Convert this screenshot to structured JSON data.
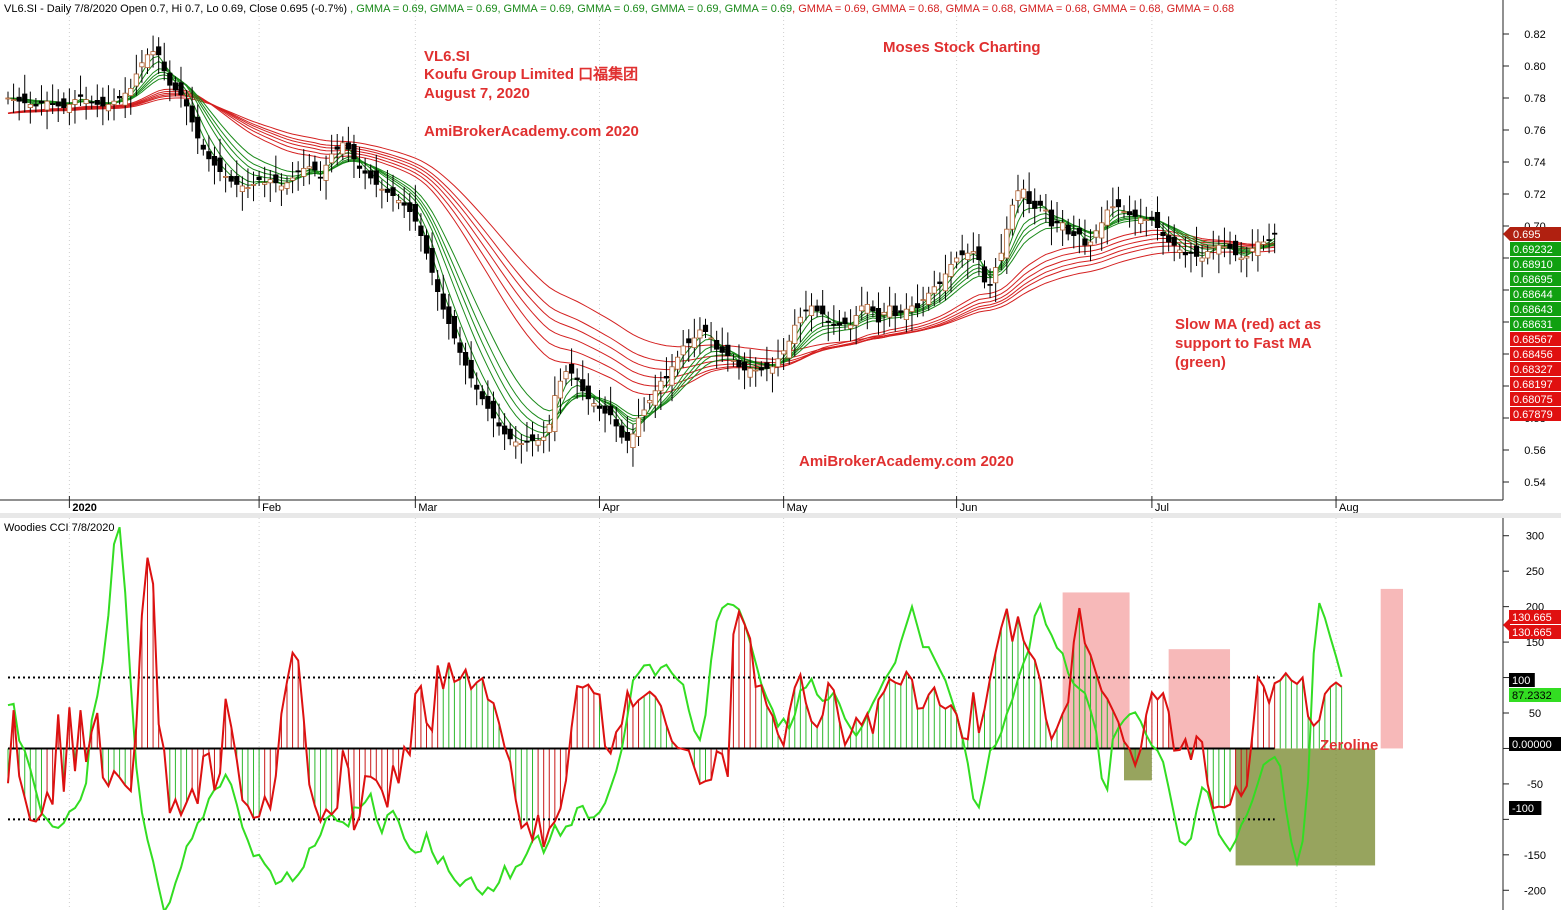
{
  "upper_pane": {
    "header_prefix": "VL6.SI - Daily 7/8/2020 Open 0.7, Hi 0.7, Lo 0.69, Close 0.695 (-0.7%)",
    "gmma_readouts": [
      {
        "text": "GMMA = 0.69",
        "color": "#1a8a1a"
      },
      {
        "text": "GMMA = 0.69",
        "color": "#1a8a1a"
      },
      {
        "text": "GMMA = 0.69",
        "color": "#1a8a1a"
      },
      {
        "text": "GMMA = 0.69",
        "color": "#1a8a1a"
      },
      {
        "text": "GMMA = 0.69",
        "color": "#1a8a1a"
      },
      {
        "text": "GMMA = 0.69",
        "color": "#1a8a1a"
      },
      {
        "text": "GMMA = 0.69",
        "color": "#d42020"
      },
      {
        "text": "GMMA = 0.68",
        "color": "#d42020"
      },
      {
        "text": "GMMA = 0.68",
        "color": "#d42020"
      },
      {
        "text": "GMMA = 0.68",
        "color": "#d42020"
      },
      {
        "text": "GMMA = 0.68",
        "color": "#d42020"
      },
      {
        "text": "GMMA = 0.68",
        "color": "#d42020"
      }
    ],
    "annotations": {
      "ticker": "VL6.SI",
      "company": "Koufu Group Limited 口福集团",
      "date": "August 7, 2020",
      "site_top": "AmiBrokerAcademy.com  2020",
      "brand": "Moses Stock Charting",
      "site_bottom": "AmiBrokerAcademy.com  2020",
      "note_line1": "Slow MA (red) act as",
      "note_line2": "support to Fast MA",
      "note_line3": "(green)"
    }
  },
  "lower_pane": {
    "title": "Woodies CCI  7/8/2020",
    "zeroline_label": "Zeroline"
  },
  "colors": {
    "up_candle": "#ffffff",
    "down_candle": "#000000",
    "fast_ma": "#1a8a1a",
    "slow_ma": "#d42020",
    "cci_line": "#33dd22",
    "turbo_line": "#dd1111",
    "annotation_red": "#e03030",
    "highlight_pink": "#f08080",
    "highlight_olive": "#6b7d1a"
  },
  "chart_data": [
    {
      "type": "candlestick",
      "title": "VL6.SI - Daily 7/8/2020",
      "ylim": [
        0.53,
        0.83
      ],
      "yticks": [
        0.54,
        0.56,
        0.58,
        0.6,
        0.62,
        0.64,
        0.66,
        0.68,
        0.7,
        0.72,
        0.74,
        0.76,
        0.78,
        0.8,
        0.82
      ],
      "ytick_labels": [
        "0.54",
        "0.56",
        "0.58",
        "",
        "",
        "",
        "",
        "",
        "0.70",
        "0.72",
        "0.74",
        "0.76",
        "0.78",
        "0.80",
        "0.82"
      ],
      "x_labels": [
        "2020",
        "Feb",
        "Mar",
        "Apr",
        "May",
        "Jun",
        "Jul",
        "Aug"
      ],
      "x_label_bar_index": [
        11,
        45,
        73,
        106,
        139,
        170,
        205,
        238
      ],
      "close_series": [
        0.78,
        0.779,
        0.778,
        0.777,
        0.776,
        0.775,
        0.777,
        0.778,
        0.776,
        0.775,
        0.774,
        0.776,
        0.779,
        0.781,
        0.779,
        0.777,
        0.776,
        0.775,
        0.776,
        0.778,
        0.78,
        0.783,
        0.786,
        0.795,
        0.802,
        0.807,
        0.809,
        0.807,
        0.797,
        0.788,
        0.785,
        0.782,
        0.775,
        0.765,
        0.755,
        0.748,
        0.742,
        0.738,
        0.734,
        0.731,
        0.728,
        0.726,
        0.725,
        0.724,
        0.726,
        0.729,
        0.727,
        0.729,
        0.727,
        0.725,
        0.727,
        0.73,
        0.734,
        0.736,
        0.737,
        0.735,
        0.73,
        0.738,
        0.745,
        0.748,
        0.752,
        0.748,
        0.742,
        0.736,
        0.733,
        0.73,
        0.726,
        0.723,
        0.721,
        0.719,
        0.716,
        0.713,
        0.709,
        0.703,
        0.694,
        0.683,
        0.671,
        0.659,
        0.648,
        0.639,
        0.63,
        0.621,
        0.613,
        0.605,
        0.598,
        0.592,
        0.586,
        0.58,
        0.575,
        0.57,
        0.567,
        0.565,
        0.564,
        0.565,
        0.566,
        0.566,
        0.568,
        0.576,
        0.594,
        0.603,
        0.609,
        0.608,
        0.604,
        0.597,
        0.592,
        0.589,
        0.586,
        0.583,
        0.582,
        0.575,
        0.568,
        0.566,
        0.57,
        0.58,
        0.585,
        0.591,
        0.597,
        0.603,
        0.605,
        0.612,
        0.618,
        0.625,
        0.627,
        0.63,
        0.635,
        0.634,
        0.63,
        0.623,
        0.621,
        0.619,
        0.616,
        0.612,
        0.61,
        0.611,
        0.61,
        0.61,
        0.611,
        0.612,
        0.617,
        0.622,
        0.628,
        0.638,
        0.643,
        0.647,
        0.65,
        0.647,
        0.645,
        0.64,
        0.638,
        0.638,
        0.639,
        0.638,
        0.644,
        0.65,
        0.651,
        0.647,
        0.64,
        0.646,
        0.65,
        0.644,
        0.646,
        0.648,
        0.65,
        0.649,
        0.654,
        0.658,
        0.662,
        0.664,
        0.67,
        0.676,
        0.68,
        0.682,
        0.683,
        0.684,
        0.679,
        0.665,
        0.663,
        0.674,
        0.683,
        0.698,
        0.713,
        0.722,
        0.723,
        0.714,
        0.711,
        0.713,
        0.71,
        0.7,
        0.702,
        0.702,
        0.695,
        0.694,
        0.695,
        0.688,
        0.69,
        0.697,
        0.702,
        0.71,
        0.712,
        0.712,
        0.709,
        0.707,
        0.706,
        0.705,
        0.704,
        0.704,
        0.699,
        0.694,
        0.69,
        0.688,
        0.685,
        0.682,
        0.683,
        0.681,
        0.68,
        0.684,
        0.687,
        0.688,
        0.687,
        0.686,
        0.682,
        0.68,
        0.681,
        0.686,
        0.69,
        0.69,
        0.691,
        0.695
      ]
    },
    {
      "type": "line",
      "title": "Woodies CCI  7/8/2020",
      "ylim": [
        -225,
        325
      ],
      "yticks": [
        -200,
        -150,
        -100,
        -50,
        0,
        50,
        100,
        150,
        200,
        250,
        300
      ],
      "ytick_labels": [
        "-200",
        "-150",
        "-100",
        "-50",
        "0.00000",
        "50",
        "100",
        "150",
        "200",
        "250",
        "300"
      ],
      "reference_lines": [
        100,
        0,
        -100
      ],
      "readouts": [
        "130.665",
        "130.665",
        "100",
        "87.2332",
        "0.00000",
        "-100"
      ],
      "series": [
        {
          "key": "cci",
          "values": [
            -49,
            54,
            -39,
            -69,
            -101,
            -103,
            -93,
            -62,
            -79,
            48,
            -61,
            58,
            -32,
            54,
            -19,
            24,
            50,
            -41,
            -53,
            -32,
            -41,
            -52,
            -60,
            31,
            188,
            269,
            232,
            34,
            -3,
            -91,
            -72,
            -94,
            -76,
            -57,
            -78,
            -11,
            -7,
            -59,
            -35,
            70,
            31,
            -16,
            -73,
            -81,
            -98,
            -96,
            -68,
            -85,
            -39,
            49,
            94,
            135,
            124,
            42,
            -51,
            -81,
            -103,
            -86,
            -93,
            -84,
            -3,
            -28,
            -115,
            -96,
            -39,
            -40,
            -45,
            -59,
            -83,
            -24,
            -49,
            2,
            -9,
            77,
            88,
            36,
            25,
            117,
            84,
            121,
            94,
            98,
            111,
            84,
            93,
            99,
            69,
            64,
            36,
            2,
            -19,
            -73,
            -112,
            -105,
            -129,
            -94,
            -139,
            -113,
            -103,
            -85,
            -45,
            30,
            88,
            86,
            90,
            78,
            76,
            3,
            -7,
            23,
            34,
            80,
            59,
            68,
            74,
            80,
            73,
            60,
            33,
            10,
            1,
            -1,
            -3,
            -27,
            -50,
            -46,
            -44,
            -4,
            -8,
            -40,
            161,
            193,
            175,
            155,
            87,
            89,
            60,
            46,
            20,
            4,
            51,
            86,
            104,
            64,
            38,
            30,
            47,
            92,
            82,
            39,
            5,
            20,
            43,
            33,
            49,
            21,
            69,
            80,
            98,
            93,
            90,
            108,
            97,
            56,
            57,
            76,
            86,
            61,
            56,
            61,
            48,
            15,
            13,
            79,
            22,
            55,
            99,
            136,
            170,
            197,
            151,
            186,
            152,
            136,
            125,
            96,
            42,
            13,
            29,
            49,
            65,
            150,
            198,
            148,
            132,
            106,
            81,
            70,
            54,
            37,
            10,
            -1,
            -24,
            -1,
            48,
            79,
            69,
            78,
            52,
            -3,
            -2,
            13,
            -16,
            17,
            9,
            -51,
            -84,
            -82,
            -83,
            -79,
            -53,
            -67,
            -53,
            18,
            100,
            88,
            64,
            92,
            96,
            106,
            96,
            91,
            100,
            45,
            32,
            40,
            77,
            87,
            93,
            87
          ]
        },
        {
          "key": "turbo",
          "values": [
            61,
            63,
            11,
            -3,
            -29,
            -60,
            -91,
            -100,
            -110,
            -112,
            -105,
            -89,
            -84,
            -72,
            -49,
            40,
            74,
            122,
            188,
            288,
            312,
            220,
            91,
            -26,
            -90,
            -129,
            -159,
            -196,
            -230,
            -217,
            -190,
            -168,
            -138,
            -127,
            -105,
            -97,
            -71,
            -58,
            -54,
            -37,
            -51,
            -79,
            -111,
            -130,
            -152,
            -150,
            -163,
            -173,
            -191,
            -187,
            -175,
            -187,
            -178,
            -167,
            -141,
            -137,
            -122,
            -99,
            -93,
            -102,
            -104,
            -110,
            -83,
            -84,
            -76,
            -64,
            -99,
            -119,
            -94,
            -88,
            -103,
            -127,
            -141,
            -147,
            -145,
            -120,
            -146,
            -162,
            -153,
            -173,
            -185,
            -194,
            -186,
            -182,
            -198,
            -206,
            -196,
            -201,
            -189,
            -166,
            -183,
            -167,
            -163,
            -148,
            -130,
            -123,
            -147,
            -130,
            -108,
            -123,
            -110,
            -108,
            -84,
            -81,
            -98,
            -97,
            -90,
            -77,
            -55,
            -32,
            -1,
            45,
            96,
            106,
            117,
            118,
            103,
            114,
            118,
            106,
            97,
            90,
            54,
            25,
            12,
            47,
            124,
            179,
            198,
            204,
            202,
            196,
            176,
            150,
            121,
            91,
            71,
            55,
            31,
            42,
            28,
            47,
            82,
            86,
            98,
            76,
            67,
            69,
            79,
            63,
            42,
            29,
            18,
            30,
            47,
            64,
            79,
            96,
            108,
            121,
            150,
            175,
            200,
            172,
            143,
            143,
            127,
            111,
            96,
            72,
            47,
            17,
            -21,
            -71,
            -83,
            -45,
            -3,
            5,
            22,
            49,
            69,
            98,
            121,
            140,
            187,
            203,
            175,
            160,
            142,
            134,
            106,
            91,
            84,
            78,
            54,
            24,
            -42,
            -58,
            13,
            29,
            40,
            48,
            51,
            38,
            19,
            4,
            -3,
            -19,
            -55,
            -94,
            -131,
            -136,
            -127,
            -88,
            -55,
            -62,
            -90,
            -121,
            -133,
            -144,
            -130,
            -108,
            -94,
            -74,
            -49,
            -23,
            -17,
            -12,
            -25,
            -85,
            -132,
            -162,
            -131,
            -46,
            134,
            205,
            184,
            156,
            130,
            101
          ]
        }
      ],
      "highlights": [
        {
          "from_bar": 189,
          "to_bar": 201,
          "y_top": 220,
          "y_bottom": 0,
          "color": "pink"
        },
        {
          "from_bar": 200,
          "to_bar": 205,
          "y_top": 0,
          "y_bottom": -45,
          "color": "olive"
        },
        {
          "from_bar": 208,
          "to_bar": 219,
          "y_top": 140,
          "y_bottom": 0,
          "color": "pink"
        },
        {
          "from_bar": 220,
          "to_bar": 245,
          "y_top": 0,
          "y_bottom": -165,
          "color": "olive"
        },
        {
          "from_bar": 246,
          "to_bar": 250,
          "y_top": 225,
          "y_bottom": 0,
          "color": "pink"
        }
      ]
    }
  ]
}
